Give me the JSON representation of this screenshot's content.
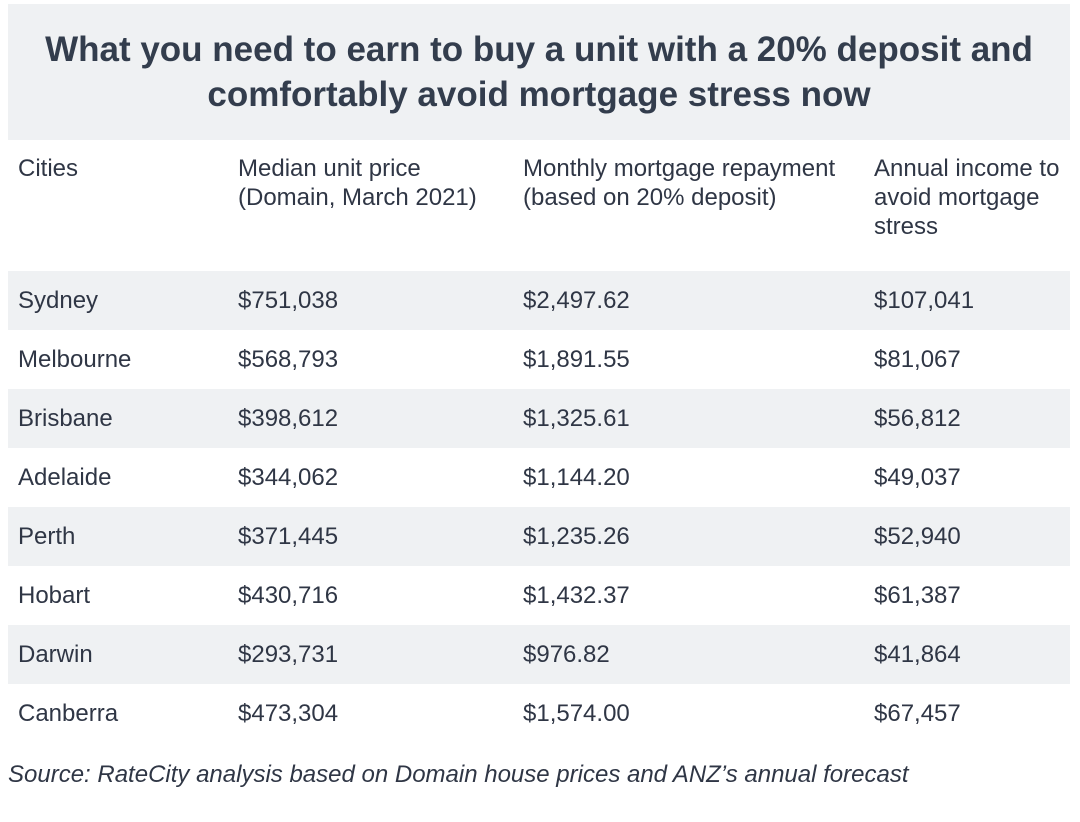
{
  "title_line1": "What you need to earn to buy a unit with a 20% deposit and",
  "title_line2": "comfortably avoid mortgage stress now",
  "headers": {
    "city": "Cities",
    "median_price": "Median unit price (Domain, March 2021)",
    "monthly_repayment": "Monthly mortgage repayment (based on 20% deposit)",
    "annual_income": "Annual income to avoid mortgage stress"
  },
  "rows": [
    {
      "city": "Sydney",
      "median_price": "$751,038",
      "monthly_repayment": "$2,497.62",
      "annual_income": "$107,041"
    },
    {
      "city": "Melbourne",
      "median_price": "$568,793",
      "monthly_repayment": "$1,891.55",
      "annual_income": "$81,067"
    },
    {
      "city": "Brisbane",
      "median_price": "$398,612",
      "monthly_repayment": "$1,325.61",
      "annual_income": "$56,812"
    },
    {
      "city": "Adelaide",
      "median_price": "$344,062",
      "monthly_repayment": "$1,144.20",
      "annual_income": "$49,037"
    },
    {
      "city": "Perth",
      "median_price": "$371,445",
      "monthly_repayment": "$1,235.26",
      "annual_income": "$52,940"
    },
    {
      "city": "Hobart",
      "median_price": "$430,716",
      "monthly_repayment": "$1,432.37",
      "annual_income": "$61,387"
    },
    {
      "city": "Darwin",
      "median_price": "$293,731",
      "monthly_repayment": "$976.82",
      "annual_income": "$41,864"
    },
    {
      "city": "Canberra",
      "median_price": "$473,304",
      "monthly_repayment": "$1,574.00",
      "annual_income": "$67,457"
    }
  ],
  "source": "Source: RateCity analysis based on Domain house prices and ANZ’s annual forecast",
  "colors": {
    "title_background": "#eff1f3",
    "stripe_background": "#eff1f3",
    "text": "#2f3645"
  }
}
